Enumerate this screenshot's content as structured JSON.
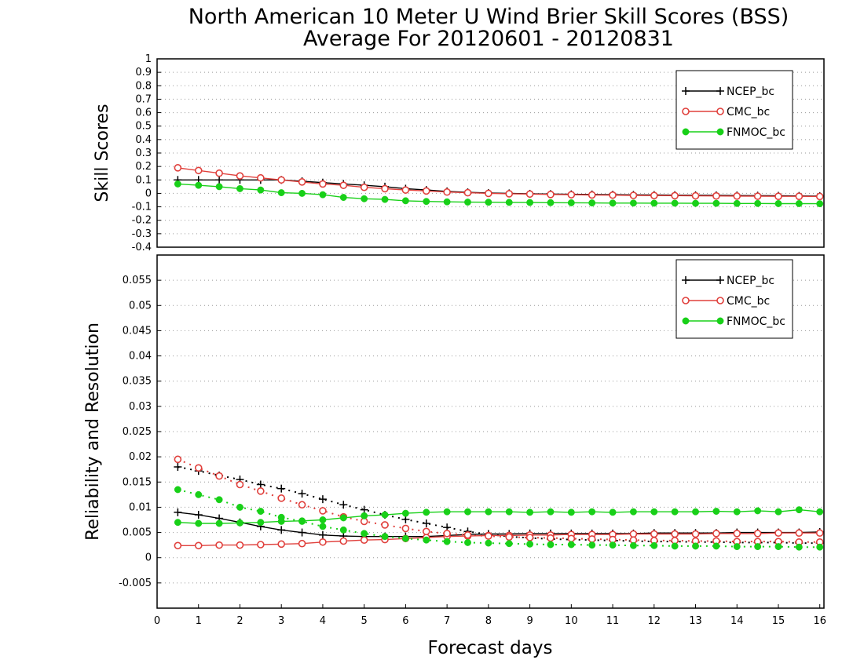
{
  "title": "North American 10 Meter U Wind Brier Skill Scores (BSS)",
  "subtitle": "Average For 20120601 - 20120831",
  "xlabel": "Forecast days",
  "colors": {
    "NCEP_bc": "#000000",
    "CMC_bc": "#e0403c",
    "FNMOC_bc": "#18d018"
  },
  "chart_data": [
    {
      "type": "line",
      "ylabel": "Skill Scores",
      "ylim": [
        -0.4,
        1
      ],
      "yticks": [
        "-0.4",
        "-0.3",
        "-0.2",
        "-0.1",
        "0",
        "0.1",
        "0.2",
        "0.3",
        "0.4",
        "0.5",
        "0.6",
        "0.7",
        "0.8",
        "0.9",
        "1"
      ],
      "grid": true,
      "legend_position": "top-right",
      "x": [
        0.5,
        1,
        1.5,
        2,
        2.5,
        3,
        3.5,
        4,
        4.5,
        5,
        5.5,
        6,
        6.5,
        7,
        7.5,
        8,
        8.5,
        9,
        9.5,
        10,
        10.5,
        11,
        11.5,
        12,
        12.5,
        13,
        13.5,
        14,
        14.5,
        15,
        15.5,
        16
      ],
      "series": [
        {
          "name": "NCEP_bc",
          "marker": "plus",
          "values": [
            0.1,
            0.1,
            0.1,
            0.1,
            0.1,
            0.1,
            0.09,
            0.08,
            0.07,
            0.06,
            0.05,
            0.035,
            0.025,
            0.015,
            0.008,
            0.003,
            0.0,
            -0.003,
            -0.005,
            -0.007,
            -0.008,
            -0.01,
            -0.011,
            -0.012,
            -0.013,
            -0.014,
            -0.015,
            -0.016,
            -0.017,
            -0.018,
            -0.019,
            -0.02
          ]
        },
        {
          "name": "CMC_bc",
          "marker": "open-circle",
          "values": [
            0.19,
            0.17,
            0.15,
            0.13,
            0.115,
            0.1,
            0.085,
            0.07,
            0.06,
            0.045,
            0.035,
            0.025,
            0.018,
            0.01,
            0.005,
            0.0,
            -0.003,
            -0.005,
            -0.008,
            -0.01,
            -0.012,
            -0.013,
            -0.015,
            -0.016,
            -0.017,
            -0.018,
            -0.019,
            -0.02,
            -0.021,
            -0.022,
            -0.022,
            -0.023
          ]
        },
        {
          "name": "FNMOC_bc",
          "marker": "filled-circle",
          "values": [
            0.07,
            0.06,
            0.05,
            0.035,
            0.025,
            0.005,
            0.0,
            -0.01,
            -0.03,
            -0.04,
            -0.045,
            -0.055,
            -0.06,
            -0.063,
            -0.065,
            -0.066,
            -0.067,
            -0.068,
            -0.069,
            -0.07,
            -0.071,
            -0.072,
            -0.072,
            -0.073,
            -0.073,
            -0.074,
            -0.074,
            -0.075,
            -0.075,
            -0.076,
            -0.076,
            -0.077
          ]
        }
      ]
    },
    {
      "type": "line",
      "ylabel": "Reliability and Resolution",
      "ylim": [
        -0.01,
        0.06
      ],
      "yticks": [
        "-0.005",
        "0",
        "0.005",
        "0.01",
        "0.015",
        "0.02",
        "0.025",
        "0.03",
        "0.035",
        "0.04",
        "0.045",
        "0.05",
        "0.055"
      ],
      "grid": true,
      "legend_position": "top-right",
      "x": [
        0.5,
        1,
        1.5,
        2,
        2.5,
        3,
        3.5,
        4,
        4.5,
        5,
        5.5,
        6,
        6.5,
        7,
        7.5,
        8,
        8.5,
        9,
        9.5,
        10,
        10.5,
        11,
        11.5,
        12,
        12.5,
        13,
        13.5,
        14,
        14.5,
        15,
        15.5,
        16
      ],
      "series": [
        {
          "name": "NCEP_bc",
          "component": "reliability",
          "marker": "plus",
          "values": [
            0.009,
            0.0085,
            0.0078,
            0.007,
            0.0062,
            0.0055,
            0.005,
            0.0045,
            0.0043,
            0.0042,
            0.0042,
            0.0042,
            0.0042,
            0.0044,
            0.0046,
            0.0047,
            0.0047,
            0.0048,
            0.0048,
            0.0048,
            0.0048,
            0.0048,
            0.0048,
            0.0049,
            0.0049,
            0.0049,
            0.0049,
            0.005,
            0.005,
            0.005,
            0.005,
            0.0051
          ]
        },
        {
          "name": "NCEP_bc",
          "component": "resolution",
          "marker": "plus",
          "values": [
            0.018,
            0.0172,
            0.0163,
            0.0155,
            0.0145,
            0.0137,
            0.0127,
            0.0116,
            0.0105,
            0.0095,
            0.0085,
            0.0076,
            0.0068,
            0.006,
            0.0052,
            0.0046,
            0.0042,
            0.0039,
            0.0037,
            0.0036,
            0.0035,
            0.0034,
            0.0033,
            0.0032,
            0.0032,
            0.0031,
            0.0031,
            0.003,
            0.003,
            0.003,
            0.0029,
            0.0029
          ]
        },
        {
          "name": "CMC_bc",
          "component": "reliability",
          "marker": "open-circle",
          "values": [
            0.0024,
            0.0024,
            0.0025,
            0.0025,
            0.0026,
            0.0027,
            0.0028,
            0.0031,
            0.0033,
            0.0035,
            0.0036,
            0.0038,
            0.004,
            0.0042,
            0.0043,
            0.0044,
            0.0044,
            0.0045,
            0.0045,
            0.0046,
            0.0046,
            0.0046,
            0.0047,
            0.0047,
            0.0047,
            0.0047,
            0.0048,
            0.0048,
            0.0048,
            0.0049,
            0.0049,
            0.0049
          ]
        },
        {
          "name": "CMC_bc",
          "component": "resolution",
          "marker": "open-circle",
          "values": [
            0.0195,
            0.0178,
            0.0162,
            0.0145,
            0.0132,
            0.0118,
            0.0105,
            0.0093,
            0.0081,
            0.0072,
            0.0065,
            0.0058,
            0.0052,
            0.0048,
            0.0045,
            0.0043,
            0.0041,
            0.004,
            0.0039,
            0.0038,
            0.0037,
            0.0036,
            0.0035,
            0.0034,
            0.0034,
            0.0033,
            0.0033,
            0.0032,
            0.0032,
            0.0032,
            0.0031,
            0.0031
          ]
        },
        {
          "name": "FNMOC_bc",
          "component": "reliability",
          "marker": "filled-circle",
          "values": [
            0.007,
            0.0068,
            0.0068,
            0.0069,
            0.007,
            0.0072,
            0.0073,
            0.0075,
            0.0079,
            0.0083,
            0.0085,
            0.0088,
            0.009,
            0.0091,
            0.0091,
            0.0091,
            0.0091,
            0.009,
            0.0091,
            0.009,
            0.0091,
            0.009,
            0.0091,
            0.0091,
            0.0091,
            0.0091,
            0.0092,
            0.0091,
            0.0093,
            0.0091,
            0.0095,
            0.0091
          ]
        },
        {
          "name": "FNMOC_bc",
          "component": "resolution",
          "marker": "filled-circle",
          "values": [
            0.0135,
            0.0125,
            0.0115,
            0.01,
            0.0092,
            0.008,
            0.0072,
            0.0062,
            0.0055,
            0.0048,
            0.0042,
            0.0038,
            0.0035,
            0.0032,
            0.003,
            0.0029,
            0.0028,
            0.0027,
            0.0026,
            0.0026,
            0.0025,
            0.0025,
            0.0024,
            0.0024,
            0.0023,
            0.0023,
            0.0023,
            0.0022,
            0.0022,
            0.0022,
            0.0021,
            0.0021
          ]
        }
      ]
    }
  ],
  "xticks": [
    "0",
    "1",
    "2",
    "3",
    "4",
    "5",
    "6",
    "7",
    "8",
    "9",
    "10",
    "11",
    "12",
    "13",
    "14",
    "15",
    "16"
  ],
  "legend": [
    "NCEP_bc",
    "CMC_bc",
    "FNMOC_bc"
  ]
}
